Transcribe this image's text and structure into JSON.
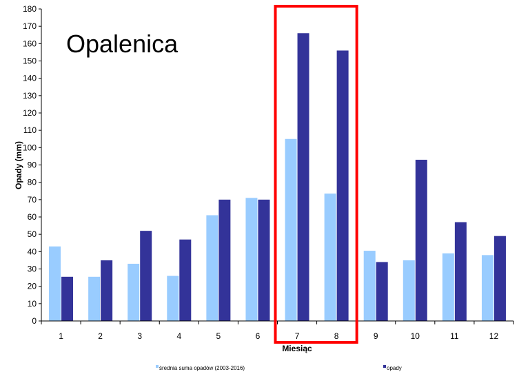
{
  "chart_data": {
    "type": "bar",
    "title": "Opalenica",
    "xlabel": "Miesiąc",
    "ylabel": "Opady (mm)",
    "ylim": [
      0,
      180
    ],
    "ytick_step": 10,
    "categories": [
      "1",
      "2",
      "3",
      "4",
      "5",
      "6",
      "7",
      "8",
      "9",
      "10",
      "11",
      "12"
    ],
    "series": [
      {
        "name": "średnia suma opadów (2003-2016)",
        "color": "#99ccff",
        "values": [
          43,
          25.5,
          33,
          26,
          61,
          71,
          105,
          73.5,
          40.5,
          35,
          39,
          38
        ]
      },
      {
        "name": "opady",
        "color": "#333399",
        "values": [
          25.5,
          35,
          52,
          47,
          70,
          70,
          166,
          156,
          34,
          93,
          57,
          49
        ]
      }
    ],
    "grid": false,
    "legend": "bottom",
    "highlight": {
      "categories": [
        "7",
        "8"
      ],
      "color": "#ff0000"
    }
  }
}
